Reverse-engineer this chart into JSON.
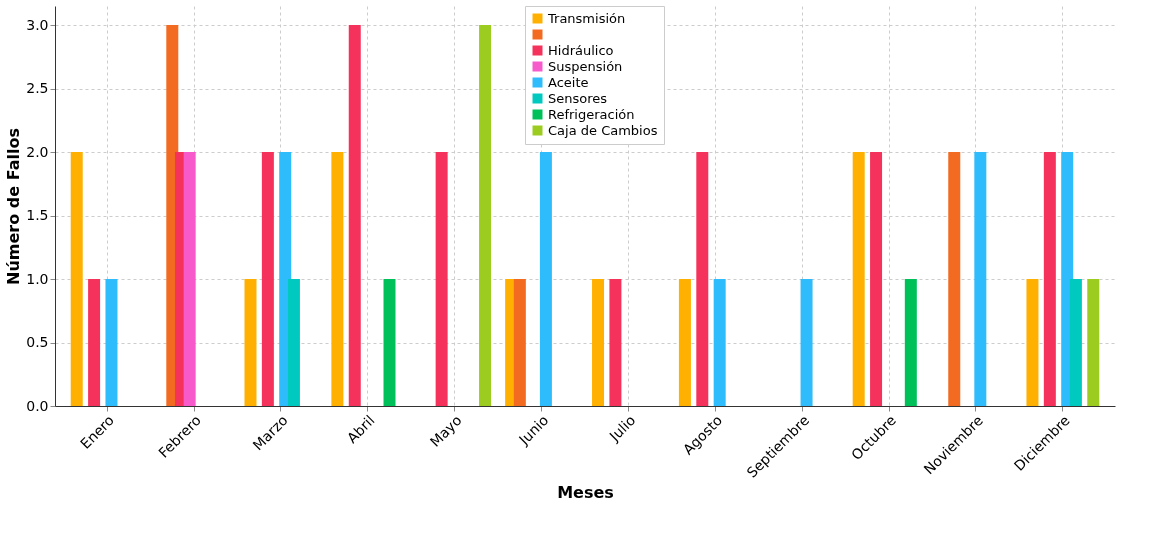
{
  "chart_data": {
    "type": "bar",
    "xlabel": "Meses",
    "ylabel": "Número de Fallos",
    "categories": [
      "Enero",
      "Febrero",
      "Marzo",
      "Abril",
      "Mayo",
      "Junio",
      "Julio",
      "Agosto",
      "Septiembre",
      "Octubre",
      "Noviembre",
      "Diciembre"
    ],
    "series": [
      {
        "name": "Transmisión",
        "color": "#ffb000",
        "values": [
          2,
          null,
          1,
          2,
          null,
          1,
          1,
          1,
          null,
          2,
          null,
          1
        ]
      },
      {
        "color": "#f26b21",
        "values": [
          null,
          3,
          null,
          null,
          null,
          1,
          null,
          null,
          null,
          null,
          2,
          null
        ]
      },
      {
        "name": "Hidráulico",
        "color": "#f5325b",
        "values": [
          1,
          2,
          2,
          3,
          2,
          null,
          1,
          2,
          null,
          2,
          null,
          2
        ]
      },
      {
        "name": "Suspensión",
        "color": "#f75bcb",
        "values": [
          null,
          2,
          null,
          null,
          null,
          null,
          null,
          null,
          null,
          null,
          null,
          null
        ]
      },
      {
        "name": "Aceite",
        "color": "#2ebcfc",
        "values": [
          1,
          null,
          2,
          null,
          null,
          2,
          null,
          1,
          1,
          null,
          2,
          2
        ]
      },
      {
        "name": "Sensores",
        "color": "#00c9c0",
        "values": [
          null,
          null,
          1,
          null,
          null,
          null,
          null,
          null,
          null,
          null,
          null,
          1
        ]
      },
      {
        "name": "Refrigeración",
        "color": "#00c05a",
        "values": [
          null,
          null,
          null,
          1,
          null,
          null,
          null,
          null,
          null,
          1,
          null,
          null
        ]
      },
      {
        "name": "Caja de Cambios",
        "color": "#9ccc20",
        "values": [
          null,
          null,
          null,
          null,
          3,
          null,
          null,
          null,
          null,
          null,
          null,
          1
        ]
      }
    ],
    "ylim": [
      0,
      3.15
    ],
    "yticks": [
      {
        "value": 0,
        "label": "0.0"
      },
      {
        "value": 0.5,
        "label": "0.5"
      },
      {
        "value": 1,
        "label": "1.0"
      },
      {
        "value": 1.5,
        "label": "1.5"
      },
      {
        "value": 2,
        "label": "2.0"
      },
      {
        "value": 2.5,
        "label": "2.5"
      },
      {
        "value": 3,
        "label": "3.0"
      }
    ],
    "grid": true,
    "legend": "top"
  }
}
